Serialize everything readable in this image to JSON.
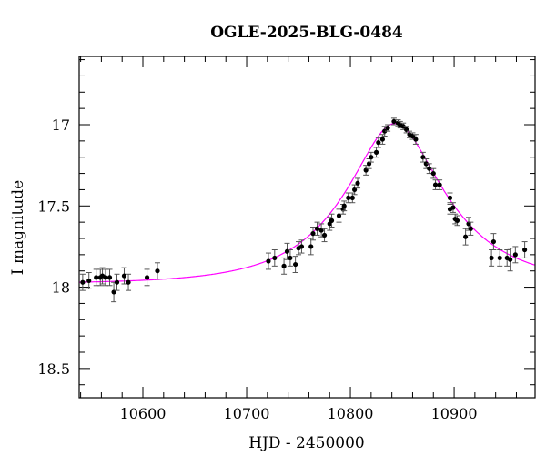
{
  "chart_data": {
    "type": "scatter",
    "title": "OGLE-2025-BLG-0484",
    "xlabel": "HJD - 2450000",
    "ylabel": "I magnitude",
    "xlim": [
      10538.6,
      10978
    ],
    "ylim": [
      18.68,
      16.58
    ],
    "y_inverted": true,
    "xticks": [
      10600,
      10700,
      10800,
      10900
    ],
    "xtick_labels": [
      "10600",
      "10700",
      "10800",
      "10900"
    ],
    "yticks": [
      17,
      17.5,
      18,
      18.5
    ],
    "ytick_labels": [
      "17",
      "17.5",
      "18",
      "18.5"
    ],
    "x_minor_step": 20,
    "y_minor_step": 0.1,
    "grid": false,
    "colors": {
      "points": "#000000",
      "errorbars": "#555555",
      "model": "#ff00ff"
    },
    "model": {
      "type": "Paczynski",
      "t0": 10843,
      "tE": 87.6,
      "u0": 0.43,
      "I_base": 17.98
    },
    "series": [
      {
        "name": "data",
        "x": [
          10542,
          10548,
          10555,
          10559,
          10561,
          10564,
          10568,
          10572,
          10575,
          10582,
          10586,
          10604,
          10614,
          10721,
          10727,
          10736,
          10739,
          10742,
          10747,
          10750,
          10753,
          10762,
          10764,
          10768,
          10772,
          10775,
          10780,
          10782,
          10789,
          10793,
          10794,
          10798,
          10802,
          10804,
          10807,
          10815,
          10818,
          10820,
          10825,
          10827,
          10831,
          10833,
          10836,
          10842,
          10846,
          10848,
          10851,
          10854,
          10857,
          10860,
          10863,
          10870,
          10873,
          10876,
          10880,
          10882,
          10886,
          10896,
          10896,
          10899,
          10901,
          10903,
          10911,
          10914,
          10916,
          10936,
          10938,
          10944,
          10951,
          10954,
          10959,
          10968
        ],
        "y": [
          17.97,
          17.96,
          17.94,
          17.94,
          17.93,
          17.94,
          17.94,
          18.03,
          17.97,
          17.93,
          17.97,
          17.94,
          17.9,
          17.84,
          17.82,
          17.87,
          17.78,
          17.82,
          17.86,
          17.76,
          17.75,
          17.75,
          17.67,
          17.64,
          17.65,
          17.68,
          17.61,
          17.59,
          17.56,
          17.52,
          17.5,
          17.45,
          17.45,
          17.4,
          17.36,
          17.28,
          17.24,
          17.2,
          17.17,
          17.11,
          17.09,
          17.04,
          17.02,
          16.98,
          16.99,
          17.0,
          17.01,
          17.03,
          17.06,
          17.07,
          17.09,
          17.2,
          17.24,
          17.27,
          17.3,
          17.37,
          17.37,
          17.45,
          17.52,
          17.51,
          17.58,
          17.59,
          17.69,
          17.61,
          17.64,
          17.82,
          17.72,
          17.82,
          17.82,
          17.83,
          17.8,
          17.77
        ],
        "err": [
          0.05,
          0.05,
          0.05,
          0.05,
          0.05,
          0.05,
          0.05,
          0.06,
          0.05,
          0.05,
          0.05,
          0.05,
          0.05,
          0.05,
          0.05,
          0.05,
          0.05,
          0.05,
          0.05,
          0.04,
          0.04,
          0.05,
          0.04,
          0.04,
          0.04,
          0.04,
          0.04,
          0.04,
          0.04,
          0.03,
          0.03,
          0.03,
          0.03,
          0.03,
          0.03,
          0.03,
          0.03,
          0.03,
          0.03,
          0.03,
          0.03,
          0.03,
          0.02,
          0.02,
          0.02,
          0.02,
          0.02,
          0.02,
          0.02,
          0.02,
          0.03,
          0.03,
          0.03,
          0.03,
          0.03,
          0.03,
          0.03,
          0.03,
          0.03,
          0.03,
          0.03,
          0.03,
          0.05,
          0.04,
          0.04,
          0.05,
          0.05,
          0.05,
          0.05,
          0.07,
          0.05,
          0.05
        ]
      }
    ]
  }
}
